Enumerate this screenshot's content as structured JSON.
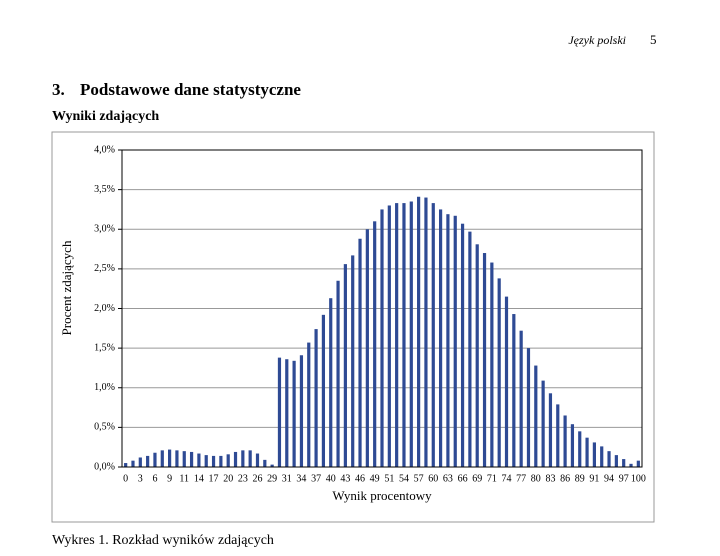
{
  "header": {
    "subject": "Język polski",
    "page": "5"
  },
  "section": {
    "number": "3.",
    "title": "Podstawowe dane statystyczne"
  },
  "subtitle": "Wyniki zdających",
  "chart_data": {
    "type": "bar",
    "xlabel": "Wynik procentowy",
    "ylabel": "Procent zdających",
    "categories": [
      "0",
      null,
      "3",
      null,
      "6",
      null,
      "9",
      null,
      "11",
      null,
      "14",
      null,
      "17",
      null,
      "20",
      null,
      "23",
      null,
      "26",
      null,
      "29",
      null,
      "31",
      null,
      "34",
      null,
      "37",
      null,
      "40",
      null,
      "43",
      null,
      "46",
      null,
      "49",
      null,
      "51",
      null,
      "54",
      null,
      "57",
      null,
      "60",
      null,
      "63",
      null,
      "66",
      null,
      "69",
      null,
      "71",
      null,
      "74",
      null,
      "77",
      null,
      "80",
      null,
      "83",
      null,
      "86",
      null,
      "89",
      null,
      "91",
      null,
      "94",
      null,
      "97",
      null,
      "100"
    ],
    "values": [
      0.05,
      0.08,
      0.12,
      0.14,
      0.18,
      0.21,
      0.22,
      0.21,
      0.2,
      0.19,
      0.17,
      0.15,
      0.14,
      0.14,
      0.16,
      0.19,
      0.21,
      0.21,
      0.17,
      0.09,
      0.03,
      1.38,
      1.36,
      1.34,
      1.41,
      1.57,
      1.74,
      1.92,
      2.13,
      2.35,
      2.56,
      2.67,
      2.88,
      3.0,
      3.1,
      3.25,
      3.3,
      3.33,
      3.33,
      3.35,
      3.41,
      3.4,
      3.33,
      3.25,
      3.19,
      3.17,
      3.07,
      2.97,
      2.81,
      2.7,
      2.58,
      2.38,
      2.15,
      1.93,
      1.72,
      1.5,
      1.28,
      1.09,
      0.93,
      0.79,
      0.65,
      0.54,
      0.45,
      0.37,
      0.31,
      0.26,
      0.2,
      0.15,
      0.1,
      0.04,
      0.08
    ],
    "color": "#2e4a94",
    "ylim": [
      0,
      4
    ],
    "yticks": [
      {
        "value": 0,
        "label": "0,0%"
      },
      {
        "value": 0.5,
        "label": "0,5%"
      },
      {
        "value": 1,
        "label": "1,0%"
      },
      {
        "value": 1.5,
        "label": "1,5%"
      },
      {
        "value": 2,
        "label": "2,0%"
      },
      {
        "value": 2.5,
        "label": "2,5%"
      },
      {
        "value": 3,
        "label": "3,0%"
      },
      {
        "value": 3.5,
        "label": "3,5%"
      },
      {
        "value": 4,
        "label": "4,0%"
      }
    ],
    "grid": true
  },
  "caption": "Wykres 1. Rozkład wyników zdających"
}
